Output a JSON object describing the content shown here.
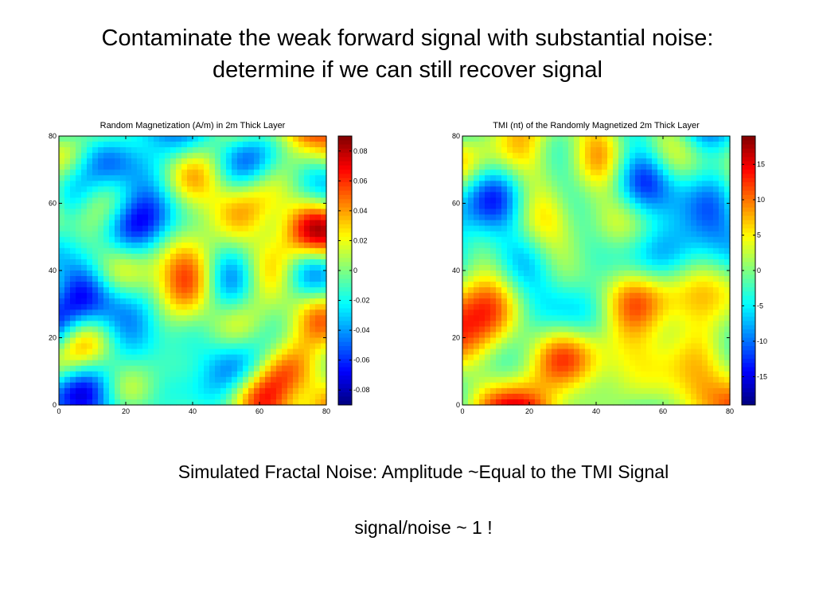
{
  "slide": {
    "title_line1": "Contaminate the weak forward signal with substantial noise:",
    "title_line2": "determine if we can still recover signal",
    "caption1": "Simulated Fractal Noise: Amplitude ~Equal to the TMI Signal",
    "caption2": "signal/noise ~ 1 !"
  },
  "chart_data": [
    {
      "type": "heatmap",
      "title": "Random Magnetization (A/m) in 2m Thick Layer",
      "xlim": [
        0,
        80
      ],
      "ylim": [
        0,
        80
      ],
      "xticks": [
        "0",
        "20",
        "40",
        "60",
        "80"
      ],
      "yticks": [
        "0",
        "20",
        "40",
        "60",
        "80"
      ],
      "colorbar": {
        "colormap": "jet",
        "range": [
          -0.09,
          0.09
        ],
        "ticks": [
          -0.08,
          -0.06,
          -0.04,
          -0.02,
          0,
          0.02,
          0.04,
          0.06,
          0.08
        ],
        "labels": [
          "-0.08",
          "-0.06",
          "-0.04",
          "-0.02",
          "0",
          "0.02",
          "0.04",
          "0.06",
          "0.08"
        ]
      }
    },
    {
      "type": "heatmap",
      "title": "TMI (nt) of the Randomly Magnetized 2m Thick Layer",
      "xlim": [
        0,
        80
      ],
      "ylim": [
        0,
        80
      ],
      "xticks": [
        "0",
        "20",
        "40",
        "60",
        "80"
      ],
      "yticks": [
        "0",
        "20",
        "40",
        "60",
        "80"
      ],
      "colorbar": {
        "colormap": "jet",
        "range": [
          -19,
          19
        ],
        "ticks": [
          -15,
          -10,
          -5,
          0,
          5,
          10,
          15
        ],
        "labels": [
          "-15",
          "-10",
          "-5",
          "0",
          "5",
          "10",
          "15"
        ]
      }
    }
  ]
}
